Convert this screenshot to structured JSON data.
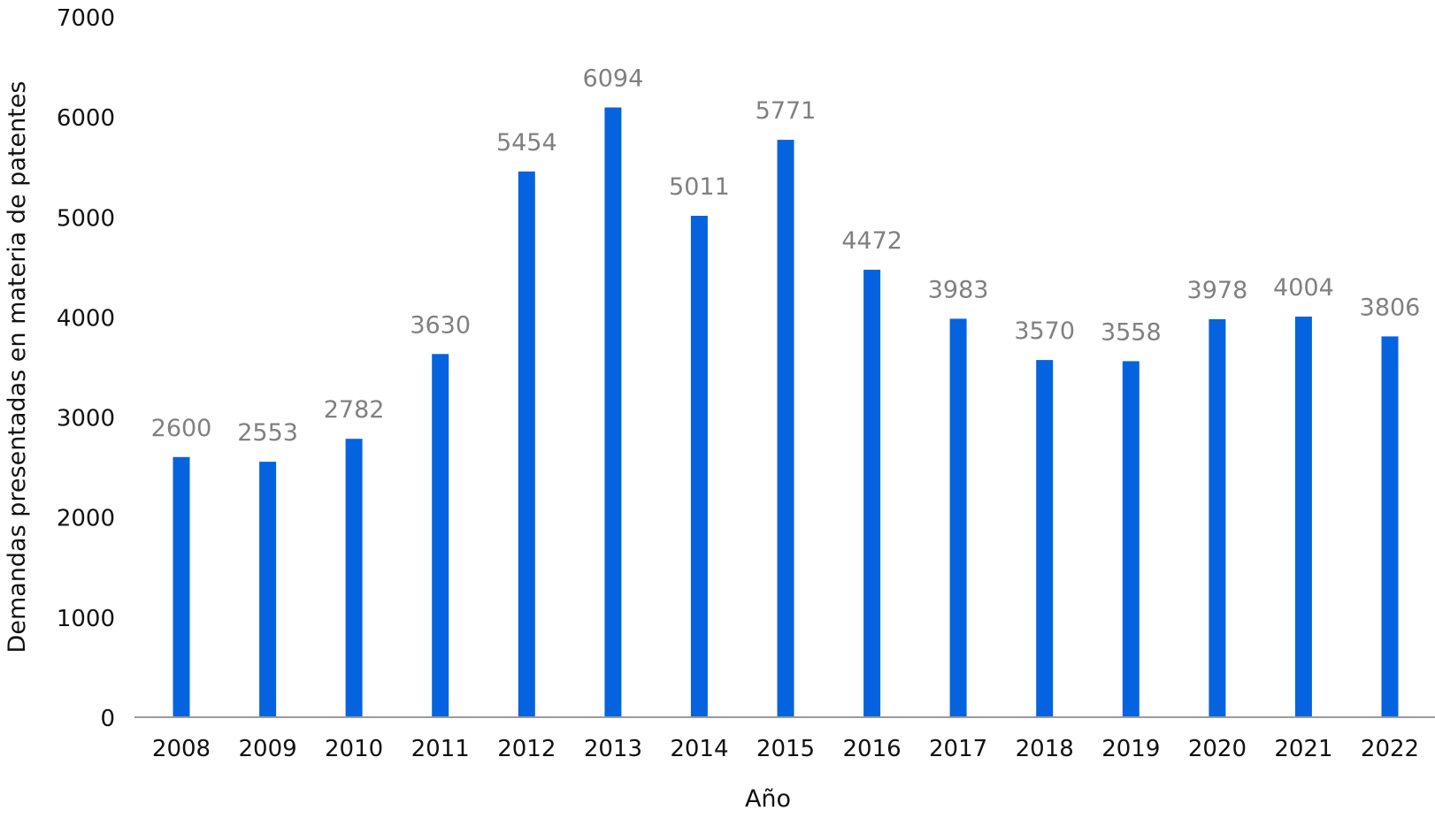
{
  "chart_data": {
    "type": "bar",
    "title": "",
    "xlabel": "Año",
    "ylabel": "Demandas presentadas en materia de patentes",
    "categories": [
      "2008",
      "2009",
      "2010",
      "2011",
      "2012",
      "2013",
      "2014",
      "2015",
      "2016",
      "2017",
      "2018",
      "2019",
      "2020",
      "2021",
      "2022"
    ],
    "values": [
      2600,
      2553,
      2782,
      3630,
      5454,
      6094,
      5011,
      5771,
      4472,
      3983,
      3570,
      3558,
      3978,
      4004,
      3806
    ],
    "ylim": [
      0,
      7000
    ],
    "yticks": [
      "0",
      "1000",
      "2000",
      "3000",
      "4000",
      "5000",
      "6000",
      "7000"
    ],
    "grid": false,
    "legend": "none",
    "bar_color": "#0563DF",
    "label_color": "#808080",
    "axis_color": "#9A9A9A"
  }
}
